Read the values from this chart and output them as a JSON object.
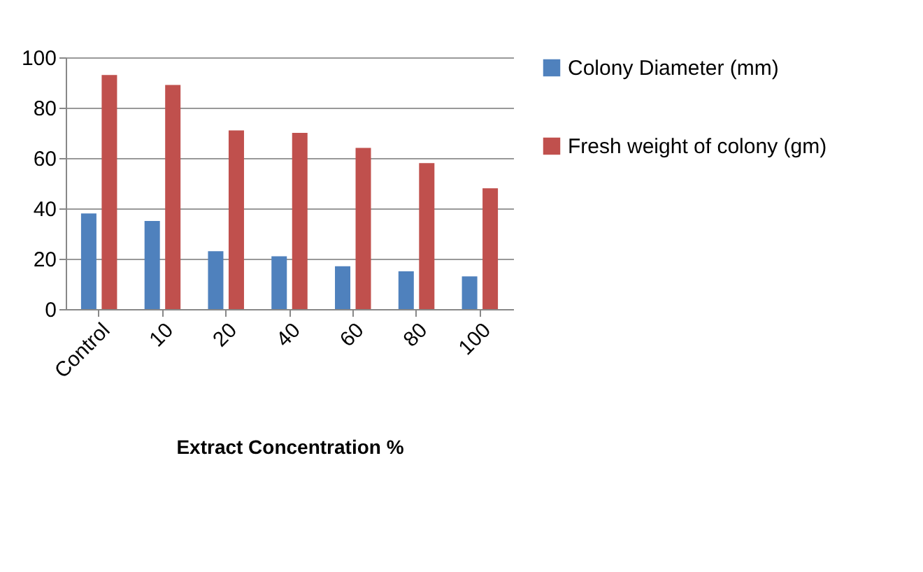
{
  "chart_data": {
    "type": "bar",
    "xlabel": "Extract Concentration %",
    "categories": [
      "Control",
      "10",
      "20",
      "40",
      "60",
      "80",
      "100"
    ],
    "series": [
      {
        "name": "Colony Diameter (mm)",
        "color": "#4f81bd",
        "values": [
          38,
          35,
          23,
          21,
          17,
          15,
          13
        ]
      },
      {
        "name": "Fresh weight of colony (gm)",
        "color": "#c0504d",
        "values": [
          93,
          89,
          71,
          70,
          64,
          58,
          48
        ]
      }
    ],
    "ylim": [
      0,
      100
    ],
    "yticks": [
      0,
      20,
      40,
      60,
      80,
      100
    ],
    "grid": "y",
    "legend": "right"
  }
}
